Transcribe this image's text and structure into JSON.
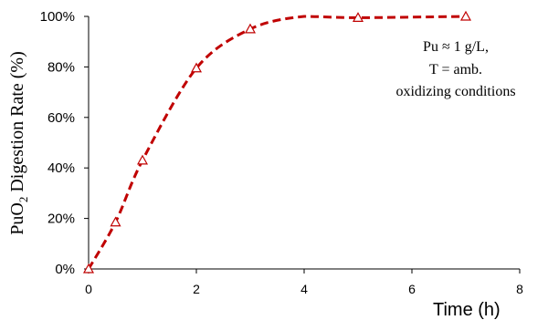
{
  "chart_data": {
    "type": "line",
    "title": "",
    "xlabel": "Time (h)",
    "ylabel_main": "PuO",
    "ylabel_sub": "2",
    "ylabel_rest": " Digestion Rate (%)",
    "xlim": [
      0,
      8
    ],
    "ylim": [
      0,
      100
    ],
    "x_ticks": [
      "0",
      "2",
      "4",
      "6",
      "8"
    ],
    "y_ticks": [
      "0%",
      "20%",
      "40%",
      "60%",
      "80%",
      "100%"
    ],
    "grid": false,
    "legend": "none",
    "series": [
      {
        "marker": "open-triangle",
        "line_style": "dashed",
        "color": "#c00000",
        "x": [
          0,
          0.5,
          1,
          2,
          3,
          5,
          7
        ],
        "y": [
          0,
          18.5,
          43,
          79.5,
          95,
          99.5,
          100
        ]
      }
    ],
    "curve_through": [
      {
        "x": 0,
        "y": 0
      },
      {
        "x": 0.5,
        "y": 18.5
      },
      {
        "x": 1,
        "y": 43
      },
      {
        "x": 2,
        "y": 79.5
      },
      {
        "x": 3,
        "y": 95
      },
      {
        "x": 4,
        "y": 100
      },
      {
        "x": 5,
        "y": 99.5
      },
      {
        "x": 7,
        "y": 100
      }
    ],
    "annotation": [
      "Pu ≈ 1 g/L,",
      "T = amb.",
      "oxidizing conditions"
    ]
  }
}
